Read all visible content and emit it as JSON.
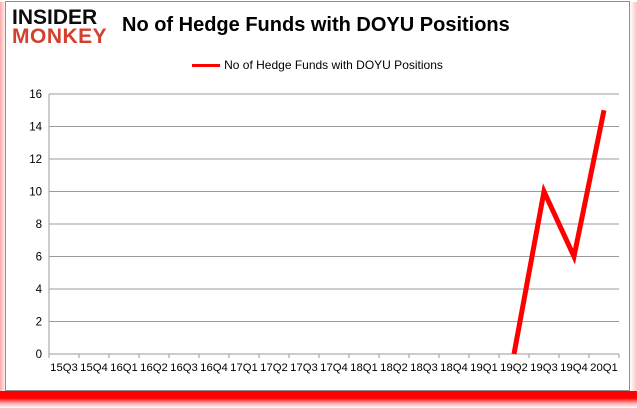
{
  "logo": {
    "line1": "INSIDER",
    "line2": "MONKEY"
  },
  "header": {
    "title": "No of Hedge Funds with DOYU Positions"
  },
  "legend": {
    "label": "No of Hedge Funds with DOYU Positions",
    "color": "#ff0000"
  },
  "chart_data": {
    "type": "line",
    "title": "No of Hedge Funds with DOYU Positions",
    "categories": [
      "15Q3",
      "15Q4",
      "16Q1",
      "16Q2",
      "16Q3",
      "16Q4",
      "17Q1",
      "17Q2",
      "17Q3",
      "17Q4",
      "18Q1",
      "18Q2",
      "18Q3",
      "18Q4",
      "19Q1",
      "19Q2",
      "19Q3",
      "19Q4",
      "20Q1"
    ],
    "series": [
      {
        "name": "No of Hedge Funds with DOYU Positions",
        "color": "#ff0000",
        "values": [
          null,
          null,
          null,
          null,
          null,
          null,
          null,
          null,
          null,
          null,
          null,
          null,
          null,
          null,
          null,
          0,
          10,
          6,
          15
        ]
      }
    ],
    "xlabel": "",
    "ylabel": "",
    "ylim": [
      0,
      16
    ],
    "ytick_step": 2,
    "grid": true,
    "legend_position": "top-center",
    "axis_color": "#9b9b9b",
    "text_color": "#000000"
  },
  "colors": {
    "line_red": "#ff0000",
    "logo_red": "#d3402e",
    "grid_gray": "#9b9b9b",
    "card_border": "#8f8f8f",
    "bottom_bar_red": "#ff0000"
  }
}
